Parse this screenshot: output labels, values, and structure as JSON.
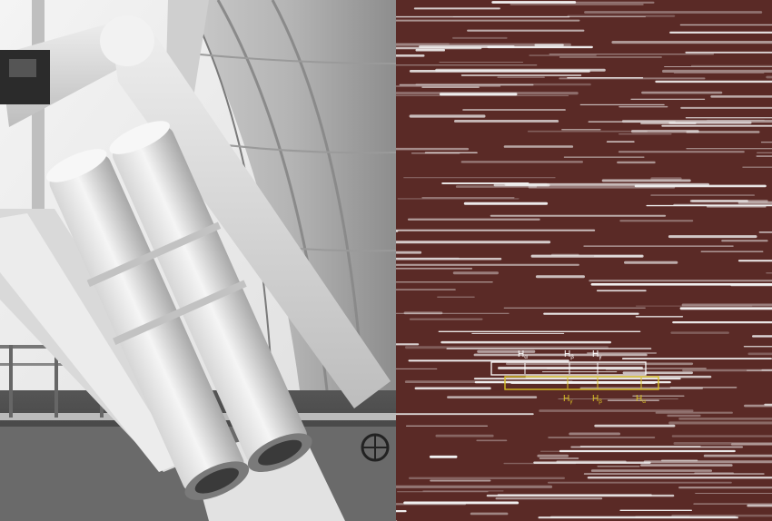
{
  "figure": {
    "left_panel": {
      "subject": "telescope-photograph"
    },
    "right_panel": {
      "subject": "objective-prism-spectral-plate",
      "colors": {
        "plate_background": "#5a2a26",
        "spectra": "#f2f2f2",
        "upper_box": "#ffffff",
        "lower_box": "#d8c025"
      },
      "upper_box": {
        "lines": [
          {
            "base": "H",
            "sub": "α"
          },
          {
            "base": "H",
            "sub": "β"
          },
          {
            "base": "H",
            "sub": "γ"
          }
        ]
      },
      "lower_box": {
        "lines": [
          {
            "base": "H",
            "sub": "γ"
          },
          {
            "base": "H",
            "sub": "β"
          },
          {
            "base": "H",
            "sub": "α"
          }
        ]
      }
    }
  }
}
